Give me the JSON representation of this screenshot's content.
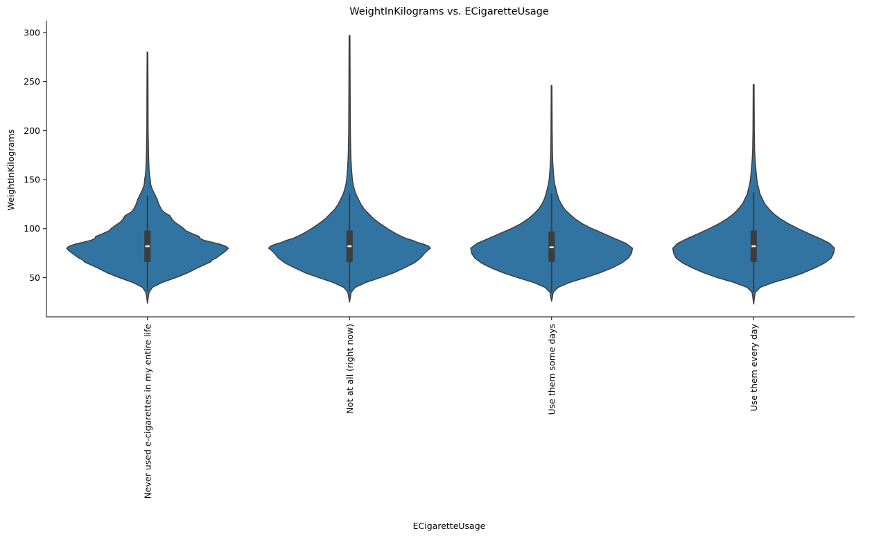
{
  "chart_data": {
    "type": "violin",
    "title": "WeightInKilograms vs. ECigaretteUsage",
    "xlabel": "ECigaretteUsage",
    "ylabel": "WeightInKilograms",
    "ylim": [
      10,
      312
    ],
    "yticks": [
      50,
      100,
      150,
      200,
      250,
      300
    ],
    "color": "#3274a1",
    "edge_color": "#3d3d3d",
    "grid": false,
    "categories": [
      "Never used e-cigarettes in my entire life",
      "Not at all (right now)",
      "Use them some days",
      "Use them every day"
    ],
    "violins": [
      {
        "min": 24,
        "max": 280,
        "q1": 66,
        "median": 82,
        "q3": 98,
        "whisker_low": 36,
        "whisker_high": 134,
        "profile": [
          [
            24,
            0.0
          ],
          [
            30,
            0.01
          ],
          [
            35,
            0.02
          ],
          [
            40,
            0.06
          ],
          [
            45,
            0.18
          ],
          [
            50,
            0.35
          ],
          [
            55,
            0.5
          ],
          [
            60,
            0.62
          ],
          [
            63,
            0.7
          ],
          [
            66,
            0.78
          ],
          [
            68,
            0.8
          ],
          [
            70,
            0.85
          ],
          [
            73,
            0.9
          ],
          [
            76,
            0.95
          ],
          [
            78,
            0.98
          ],
          [
            80,
            1.0
          ],
          [
            82,
            0.97
          ],
          [
            84,
            0.9
          ],
          [
            86,
            0.8
          ],
          [
            88,
            0.7
          ],
          [
            90,
            0.65
          ],
          [
            92,
            0.64
          ],
          [
            95,
            0.55
          ],
          [
            98,
            0.47
          ],
          [
            100,
            0.45
          ],
          [
            103,
            0.4
          ],
          [
            107,
            0.33
          ],
          [
            110,
            0.3
          ],
          [
            113,
            0.28
          ],
          [
            117,
            0.2
          ],
          [
            120,
            0.17
          ],
          [
            125,
            0.14
          ],
          [
            130,
            0.12
          ],
          [
            135,
            0.09
          ],
          [
            140,
            0.06
          ],
          [
            145,
            0.04
          ],
          [
            150,
            0.035
          ],
          [
            155,
            0.025
          ],
          [
            160,
            0.02
          ],
          [
            170,
            0.015
          ],
          [
            180,
            0.012
          ],
          [
            200,
            0.008
          ],
          [
            250,
            0.006
          ],
          [
            280,
            0.004
          ]
        ]
      },
      {
        "min": 25,
        "max": 297,
        "q1": 66,
        "median": 82,
        "q3": 98,
        "whisker_low": 36,
        "whisker_high": 136,
        "profile": [
          [
            25,
            0.0
          ],
          [
            30,
            0.01
          ],
          [
            35,
            0.02
          ],
          [
            40,
            0.07
          ],
          [
            45,
            0.2
          ],
          [
            50,
            0.38
          ],
          [
            55,
            0.55
          ],
          [
            60,
            0.68
          ],
          [
            65,
            0.8
          ],
          [
            70,
            0.88
          ],
          [
            75,
            0.93
          ],
          [
            78,
            0.97
          ],
          [
            80,
            1.0
          ],
          [
            82,
            0.98
          ],
          [
            84,
            0.92
          ],
          [
            86,
            0.84
          ],
          [
            88,
            0.78
          ],
          [
            90,
            0.7
          ],
          [
            93,
            0.62
          ],
          [
            96,
            0.55
          ],
          [
            100,
            0.47
          ],
          [
            105,
            0.38
          ],
          [
            110,
            0.3
          ],
          [
            115,
            0.24
          ],
          [
            120,
            0.18
          ],
          [
            125,
            0.14
          ],
          [
            130,
            0.11
          ],
          [
            135,
            0.08
          ],
          [
            140,
            0.06
          ],
          [
            145,
            0.045
          ],
          [
            150,
            0.035
          ],
          [
            155,
            0.03
          ],
          [
            160,
            0.025
          ],
          [
            170,
            0.018
          ],
          [
            180,
            0.014
          ],
          [
            200,
            0.01
          ],
          [
            250,
            0.007
          ],
          [
            297,
            0.005
          ]
        ]
      },
      {
        "min": 26,
        "max": 246,
        "q1": 66,
        "median": 81,
        "q3": 97,
        "whisker_low": 35,
        "whisker_high": 136,
        "profile": [
          [
            26,
            0.0
          ],
          [
            30,
            0.01
          ],
          [
            35,
            0.02
          ],
          [
            40,
            0.08
          ],
          [
            45,
            0.22
          ],
          [
            50,
            0.42
          ],
          [
            55,
            0.6
          ],
          [
            60,
            0.75
          ],
          [
            65,
            0.87
          ],
          [
            70,
            0.95
          ],
          [
            75,
            0.99
          ],
          [
            80,
            1.0
          ],
          [
            85,
            0.92
          ],
          [
            90,
            0.78
          ],
          [
            95,
            0.64
          ],
          [
            100,
            0.5
          ],
          [
            105,
            0.38
          ],
          [
            110,
            0.29
          ],
          [
            115,
            0.22
          ],
          [
            120,
            0.16
          ],
          [
            125,
            0.12
          ],
          [
            130,
            0.09
          ],
          [
            135,
            0.07
          ],
          [
            140,
            0.055
          ],
          [
            145,
            0.04
          ],
          [
            150,
            0.03
          ],
          [
            155,
            0.025
          ],
          [
            160,
            0.02
          ],
          [
            170,
            0.013
          ],
          [
            180,
            0.01
          ],
          [
            200,
            0.007
          ],
          [
            246,
            0.004
          ]
        ]
      },
      {
        "min": 23,
        "max": 247,
        "q1": 66,
        "median": 82,
        "q3": 98,
        "whisker_low": 35,
        "whisker_high": 137,
        "profile": [
          [
            23,
            0.0
          ],
          [
            30,
            0.01
          ],
          [
            35,
            0.02
          ],
          [
            40,
            0.08
          ],
          [
            45,
            0.24
          ],
          [
            50,
            0.45
          ],
          [
            55,
            0.62
          ],
          [
            60,
            0.76
          ],
          [
            65,
            0.88
          ],
          [
            70,
            0.96
          ],
          [
            75,
            0.99
          ],
          [
            80,
            1.0
          ],
          [
            85,
            0.94
          ],
          [
            90,
            0.82
          ],
          [
            95,
            0.68
          ],
          [
            100,
            0.55
          ],
          [
            105,
            0.43
          ],
          [
            110,
            0.33
          ],
          [
            115,
            0.25
          ],
          [
            120,
            0.19
          ],
          [
            125,
            0.14
          ],
          [
            130,
            0.11
          ],
          [
            135,
            0.08
          ],
          [
            140,
            0.065
          ],
          [
            145,
            0.05
          ],
          [
            150,
            0.04
          ],
          [
            160,
            0.028
          ],
          [
            170,
            0.018
          ],
          [
            180,
            0.012
          ],
          [
            200,
            0.008
          ],
          [
            247,
            0.005
          ]
        ]
      }
    ]
  }
}
